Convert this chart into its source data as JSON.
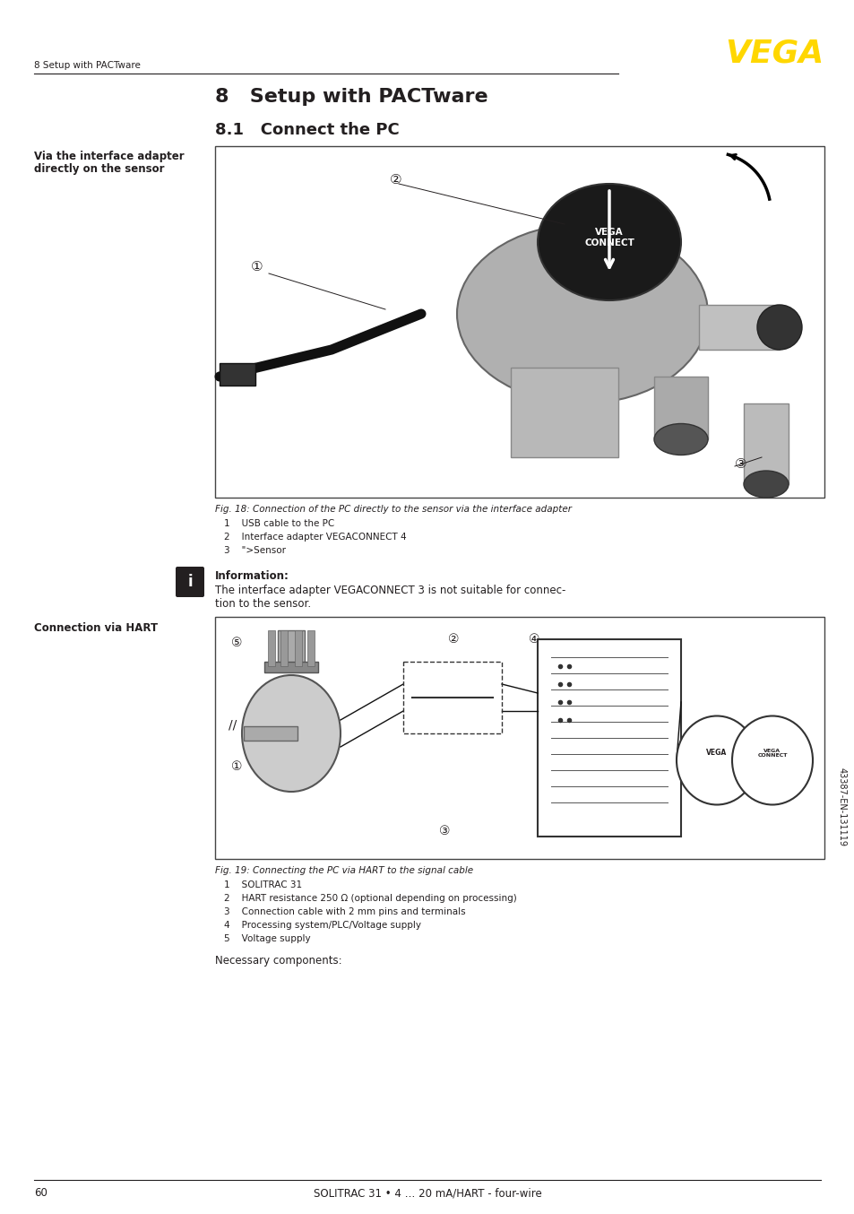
{
  "page_width": 9.54,
  "page_height": 13.54,
  "dpi": 100,
  "bg_color": "#ffffff",
  "text_color": "#231f20",
  "line_color": "#231f20",
  "vega_logo_color": "#FFD700",
  "header_text": "8 Setup with PACTware",
  "vega_logo_text": "VEGA",
  "section_title": "8   Setup with PACTware",
  "subsection_title": "8.1   Connect the PC",
  "left_label_1a": "Via the interface adapter",
  "left_label_1b": "directly on the sensor",
  "fig1_caption": "Fig. 18: Connection of the PC directly to the sensor via the interface adapter",
  "fig1_items": [
    "1    USB cable to the PC",
    "2    Interface adapter VEGACONNECT 4",
    "3    \">Sensor"
  ],
  "info_title": "Information:",
  "info_text": "The interface adapter VEGACONNECT 3 is not suitable for connec-\ntion to the sensor.",
  "left_label_2": "Connection via HART",
  "fig2_caption": "Fig. 19: Connecting the PC via HART to the signal cable",
  "fig2_items": [
    "1    SOLITRAC 31",
    "2    HART resistance 250 Ω (optional depending on processing)",
    "3    Connection cable with 2 mm pins and terminals",
    "4    Processing system/PLC/Voltage supply",
    "5    Voltage supply"
  ],
  "necessary_text": "Necessary components:",
  "footer_page": "60",
  "footer_center": "SOLITRAC 31 • 4 … 20 mA/HART - four-wire",
  "sidebar_text": "43387-EN-131119"
}
